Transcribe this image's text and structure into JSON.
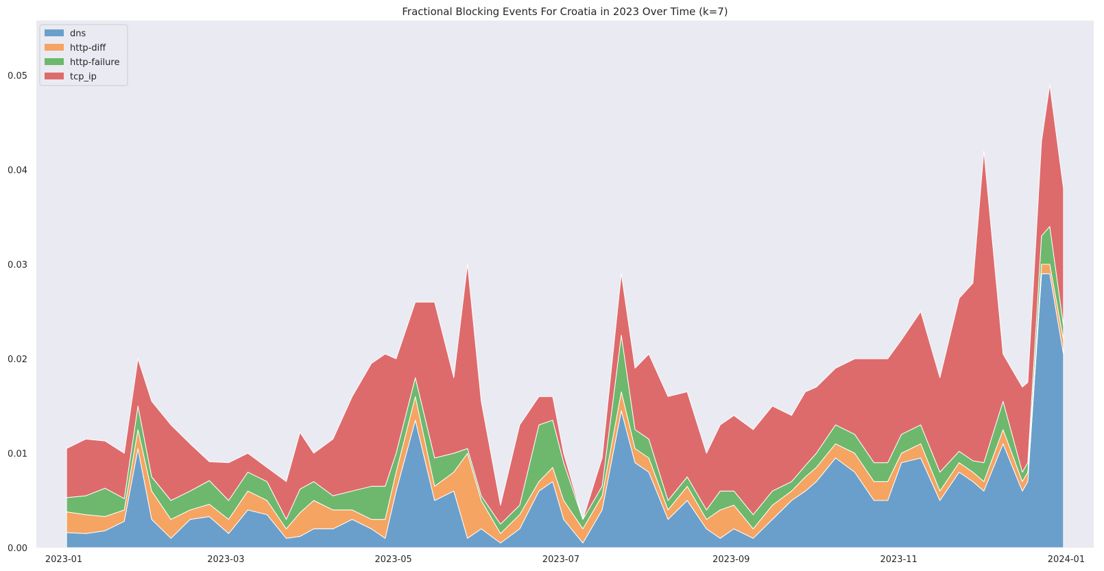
{
  "chart_data": {
    "type": "area",
    "stacked": true,
    "title": "Fractional Blocking Events For Croatia in 2023 Over Time (k=7)",
    "xlabel": "",
    "ylabel": "",
    "x_range": [
      "2022-12-22",
      "2024-01-11"
    ],
    "ylim": [
      0,
      0.0558
    ],
    "grid": false,
    "legend_position": "top-left",
    "x_ticks": [
      "2023-01",
      "2023-03",
      "2023-05",
      "2023-07",
      "2023-09",
      "2023-11",
      "2024-01"
    ],
    "y_ticks": [
      "0.00",
      "0.01",
      "0.02",
      "0.03",
      "0.04",
      "0.05"
    ],
    "x": [
      "2023-01-02",
      "2023-01-09",
      "2023-01-16",
      "2023-01-23",
      "2023-01-28",
      "2023-02-02",
      "2023-02-09",
      "2023-02-16",
      "2023-02-23",
      "2023-03-02",
      "2023-03-09",
      "2023-03-16",
      "2023-03-23",
      "2023-03-28",
      "2023-04-02",
      "2023-04-09",
      "2023-04-16",
      "2023-04-23",
      "2023-04-28",
      "2023-05-02",
      "2023-05-09",
      "2023-05-16",
      "2023-05-23",
      "2023-05-28",
      "2023-06-02",
      "2023-06-09",
      "2023-06-16",
      "2023-06-23",
      "2023-06-28",
      "2023-07-02",
      "2023-07-09",
      "2023-07-16",
      "2023-07-23",
      "2023-07-28",
      "2023-08-02",
      "2023-08-09",
      "2023-08-16",
      "2023-08-23",
      "2023-08-28",
      "2023-09-02",
      "2023-09-09",
      "2023-09-16",
      "2023-09-23",
      "2023-09-28",
      "2023-10-02",
      "2023-10-09",
      "2023-10-16",
      "2023-10-23",
      "2023-10-28",
      "2023-11-02",
      "2023-11-09",
      "2023-11-16",
      "2023-11-23",
      "2023-11-28",
      "2023-12-02",
      "2023-12-09",
      "2023-12-16",
      "2023-12-18",
      "2023-12-23",
      "2023-12-26",
      "2023-12-31"
    ],
    "series": [
      {
        "name": "dns",
        "color": "#6a9fcb",
        "values": [
          0.0016,
          0.0015,
          0.0018,
          0.0028,
          0.0105,
          0.003,
          0.001,
          0.003,
          0.0033,
          0.0015,
          0.004,
          0.0035,
          0.001,
          0.0012,
          0.002,
          0.002,
          0.003,
          0.002,
          0.001,
          0.006,
          0.0135,
          0.005,
          0.006,
          0.001,
          0.002,
          0.0005,
          0.002,
          0.006,
          0.007,
          0.003,
          0.0005,
          0.004,
          0.0145,
          0.009,
          0.008,
          0.003,
          0.005,
          0.002,
          0.001,
          0.002,
          0.001,
          0.003,
          0.005,
          0.006,
          0.007,
          0.0095,
          0.008,
          0.005,
          0.005,
          0.009,
          0.0095,
          0.005,
          0.008,
          0.007,
          0.006,
          0.011,
          0.006,
          0.007,
          0.029,
          0.029,
          0.0205
        ]
      },
      {
        "name": "http-diff",
        "color": "#f5a462",
        "values": [
          0.0022,
          0.002,
          0.0015,
          0.0012,
          0.002,
          0.003,
          0.002,
          0.001,
          0.0013,
          0.0015,
          0.002,
          0.0015,
          0.001,
          0.0025,
          0.003,
          0.002,
          0.001,
          0.001,
          0.002,
          0.002,
          0.0025,
          0.0015,
          0.002,
          0.009,
          0.003,
          0.001,
          0.0015,
          0.001,
          0.0015,
          0.002,
          0.0015,
          0.0015,
          0.002,
          0.0015,
          0.0015,
          0.001,
          0.0015,
          0.001,
          0.003,
          0.0025,
          0.001,
          0.0015,
          0.001,
          0.0015,
          0.0015,
          0.0015,
          0.002,
          0.002,
          0.002,
          0.001,
          0.0015,
          0.001,
          0.001,
          0.001,
          0.001,
          0.0015,
          0.001,
          0.001,
          0.001,
          0.001,
          0.0015
        ]
      },
      {
        "name": "http-failure",
        "color": "#6db86d",
        "values": [
          0.0015,
          0.002,
          0.003,
          0.0012,
          0.0025,
          0.0015,
          0.002,
          0.002,
          0.0025,
          0.002,
          0.002,
          0.002,
          0.001,
          0.0025,
          0.002,
          0.0015,
          0.002,
          0.0035,
          0.0035,
          0.002,
          0.002,
          0.003,
          0.002,
          0.0005,
          0.0005,
          0.001,
          0.001,
          0.006,
          0.005,
          0.004,
          0.001,
          0.001,
          0.006,
          0.002,
          0.002,
          0.001,
          0.001,
          0.001,
          0.002,
          0.0015,
          0.0015,
          0.0015,
          0.001,
          0.0012,
          0.0015,
          0.002,
          0.002,
          0.002,
          0.002,
          0.002,
          0.002,
          0.002,
          0.0012,
          0.0012,
          0.002,
          0.003,
          0.001,
          0.001,
          0.003,
          0.004,
          0.0015
        ]
      },
      {
        "name": "tcp_ip",
        "color": "#de6b6c",
        "values": [
          0.0052,
          0.006,
          0.005,
          0.0048,
          0.005,
          0.008,
          0.008,
          0.005,
          0.002,
          0.004,
          0.002,
          0.0015,
          0.004,
          0.006,
          0.003,
          0.006,
          0.01,
          0.013,
          0.014,
          0.01,
          0.008,
          0.0165,
          0.008,
          0.0195,
          0.01,
          0.002,
          0.0085,
          0.003,
          0.0025,
          0.001,
          0.0,
          0.003,
          0.0065,
          0.0065,
          0.009,
          0.011,
          0.009,
          0.006,
          0.007,
          0.008,
          0.009,
          0.009,
          0.007,
          0.0078,
          0.007,
          0.006,
          0.008,
          0.011,
          0.011,
          0.01,
          0.012,
          0.01,
          0.0162,
          0.0188,
          0.033,
          0.005,
          0.009,
          0.0085,
          0.01,
          0.015,
          0.0145
        ]
      }
    ]
  }
}
